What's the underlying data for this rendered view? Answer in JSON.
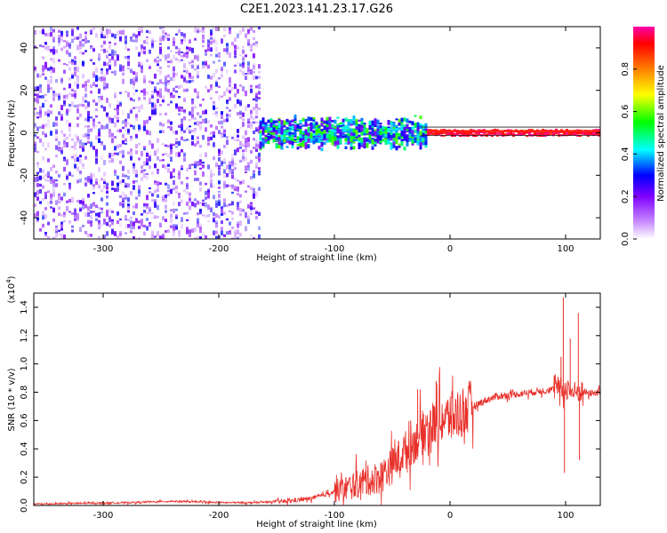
{
  "title": "C2E1.2023.141.23.17.G26",
  "chart_data": [
    {
      "type": "heatmap",
      "panel": "spectrogram",
      "xlabel": "Height of straight line (km)",
      "ylabel": "Frequency (Hz)",
      "xlim": [
        -360,
        130
      ],
      "ylim": [
        -50,
        50
      ],
      "xticks": [
        -300,
        -200,
        -100,
        0,
        100
      ],
      "xtick_labels": [
        "-300",
        "-200",
        "-100",
        "0",
        "100"
      ],
      "yticks": [
        -40,
        -20,
        0,
        20,
        40
      ],
      "ytick_labels": [
        "-40",
        "-20",
        "0",
        "20",
        "40"
      ],
      "grid": false,
      "regions": [
        {
          "x": [
            -360,
            -165
          ],
          "freq_spread": 50,
          "amplitude_range": [
            0.05,
            0.35
          ]
        },
        {
          "x": [
            -165,
            -20
          ],
          "freq_spread": 8,
          "amplitude_range": [
            0.2,
            0.6
          ]
        },
        {
          "x": [
            -20,
            130
          ],
          "freq_spread": 1.5,
          "amplitude_range": [
            0.85,
            1.0
          ]
        }
      ],
      "colorbar": {
        "label": "Normalized spectral amplitude",
        "range": [
          0.0,
          1.0
        ],
        "ticks": [
          0.0,
          0.2,
          0.4,
          0.6,
          0.8
        ],
        "tick_labels": [
          "0.0",
          "0.2",
          "0.4",
          "0.6",
          "0.8"
        ],
        "colors": [
          "#ffffff",
          "#c88cff",
          "#8000ff",
          "#0000ff",
          "#00ffff",
          "#00ff00",
          "#ffff00",
          "#ff8000",
          "#ff0000",
          "#ff00aa"
        ]
      }
    },
    {
      "type": "line",
      "panel": "snr",
      "xlabel": "Height of straight line (km)",
      "ylabel": "SNR (10 * v/v)",
      "multiplier_label": "(x10",
      "multiplier_exp": "4",
      "multiplier_close": ")",
      "xlim": [
        -360,
        130
      ],
      "ylim": [
        0.0,
        1.5
      ],
      "xticks": [
        -300,
        -200,
        -100,
        0,
        100
      ],
      "xtick_labels": [
        "-300",
        "-200",
        "-100",
        "0",
        "100"
      ],
      "yticks": [
        0.0,
        0.2,
        0.4,
        0.6,
        0.8,
        1.0,
        1.2,
        1.4
      ],
      "ytick_labels": [
        "0.0",
        "0.2",
        "0.4",
        "0.6",
        "0.8",
        "1.0",
        "1.2",
        "1.4"
      ],
      "grid": false,
      "color": "#e8302a",
      "series": [
        {
          "x": [
            -360,
            -320,
            -280,
            -240,
            -200,
            -170,
            -140,
            -120,
            -110,
            -100,
            -90,
            -80,
            -70,
            -60,
            -50,
            -40,
            -30,
            -20,
            -10,
            0,
            10,
            20,
            30,
            40,
            50,
            60,
            70,
            80,
            90,
            95,
            98,
            100,
            103,
            106,
            110,
            115,
            120,
            130
          ],
          "y": [
            0.01,
            0.015,
            0.02,
            0.03,
            0.02,
            0.02,
            0.03,
            0.05,
            0.07,
            0.1,
            0.12,
            0.15,
            0.18,
            0.2,
            0.28,
            0.38,
            0.45,
            0.55,
            0.6,
            0.62,
            0.66,
            0.7,
            0.74,
            0.77,
            0.78,
            0.79,
            0.8,
            0.81,
            0.82,
            0.84,
            0.8,
            0.83,
            0.82,
            0.8,
            0.8,
            0.81,
            0.79,
            0.8
          ]
        }
      ],
      "spikes": [
        {
          "x": 98,
          "y": 1.47
        },
        {
          "x": 96,
          "y": 1.05
        },
        {
          "x": 99,
          "y": 0.23
        },
        {
          "x": 104,
          "y": 1.18
        },
        {
          "x": 111,
          "y": 1.36
        },
        {
          "x": 112,
          "y": 0.32
        },
        {
          "x": -12,
          "y": 0.88
        },
        {
          "x": -28,
          "y": 0.82
        },
        {
          "x": -34,
          "y": 0.6
        },
        {
          "x": -45,
          "y": 0.42
        },
        {
          "x": -60,
          "y": 0.3
        },
        {
          "x": -90,
          "y": 0.2
        },
        {
          "x": -110,
          "y": 0.1
        }
      ]
    }
  ]
}
